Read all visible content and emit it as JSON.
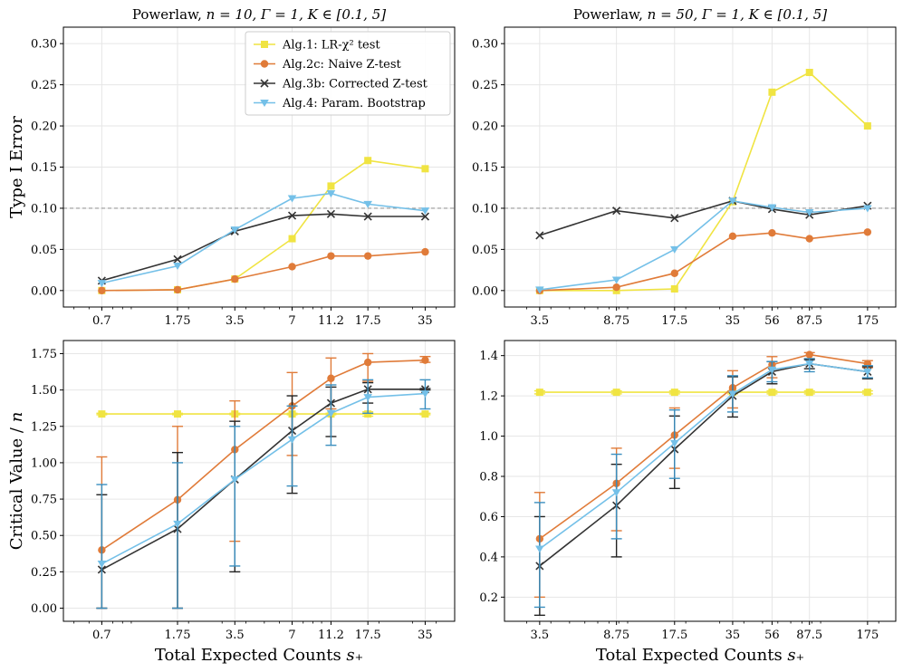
{
  "colors": {
    "alg1": "#f0e442",
    "alg2c": "#e07b39",
    "alg3b": "#333333",
    "alg4": "#74c0e8",
    "grid": "#e6e6e6",
    "refline": "#999999",
    "errbar_blue": "#3b8fbf"
  },
  "chart_data": [
    {
      "id": "p1",
      "type": "line",
      "title_prefix": "Powerlaw, ",
      "title_math": "n = 10, Γ = 1, K ∈ [0.1, 5]",
      "xlabel": "",
      "ylabel": "Type I Error",
      "xscale": "log",
      "xlim": [
        0.44,
        50
      ],
      "ylim": [
        -0.02,
        0.32
      ],
      "x": [
        0.7,
        1.75,
        3.5,
        7,
        11.2,
        17.5,
        35
      ],
      "xticklabels": [
        "0.7",
        "1.75",
        "3.5",
        "7",
        "11.2",
        "17.5",
        "35"
      ],
      "yticks": [
        0.0,
        0.05,
        0.1,
        0.15,
        0.2,
        0.25,
        0.3
      ],
      "yticklabels": [
        "0.00",
        "0.05",
        "0.10",
        "0.15",
        "0.20",
        "0.25",
        "0.30"
      ],
      "refline": 0.1,
      "series": [
        {
          "key": "alg1",
          "values": [
            0.0,
            0.001,
            0.014,
            0.063,
            0.127,
            0.158,
            0.148
          ]
        },
        {
          "key": "alg2c",
          "values": [
            0.0,
            0.001,
            0.014,
            0.029,
            0.042,
            0.042,
            0.047
          ]
        },
        {
          "key": "alg3b",
          "values": [
            0.012,
            0.038,
            0.072,
            0.091,
            0.093,
            0.09,
            0.09
          ]
        },
        {
          "key": "alg4",
          "values": [
            0.009,
            0.03,
            0.074,
            0.112,
            0.118,
            0.105,
            0.097
          ]
        }
      ]
    },
    {
      "id": "p2",
      "type": "line",
      "title_prefix": "Powerlaw, ",
      "title_math": "n = 50, Γ = 1, K ∈ [0.1, 5]",
      "xlabel": "",
      "ylabel": "",
      "xscale": "log",
      "xlim": [
        2.3,
        245
      ],
      "ylim": [
        -0.02,
        0.32
      ],
      "x": [
        3.5,
        8.75,
        17.5,
        35,
        56,
        87.5,
        175
      ],
      "xticklabels": [
        "3.5",
        "8.75",
        "17.5",
        "35",
        "56",
        "87.5",
        "175"
      ],
      "yticks": [
        0.0,
        0.05,
        0.1,
        0.15,
        0.2,
        0.25,
        0.3
      ],
      "yticklabels": [
        "0.00",
        "0.05",
        "0.10",
        "0.15",
        "0.20",
        "0.25",
        "0.30"
      ],
      "refline": 0.1,
      "series": [
        {
          "key": "alg1",
          "values": [
            0.0,
            0.0,
            0.002,
            0.108,
            0.241,
            0.265,
            0.2
          ]
        },
        {
          "key": "alg2c",
          "values": [
            0.0,
            0.004,
            0.021,
            0.066,
            0.07,
            0.063,
            0.071
          ]
        },
        {
          "key": "alg3b",
          "values": [
            0.067,
            0.097,
            0.088,
            0.109,
            0.099,
            0.092,
            0.103
          ]
        },
        {
          "key": "alg4",
          "values": [
            0.001,
            0.013,
            0.05,
            0.109,
            0.101,
            0.095,
            0.1
          ]
        }
      ]
    },
    {
      "id": "p3",
      "type": "line",
      "title_prefix": "",
      "title_math": "",
      "xlabel_prefix": "Total Expected Counts ",
      "xlabel_math": "s₊",
      "ylabel_prefix": "Critical Value / ",
      "ylabel_math": "n",
      "xscale": "log",
      "xlim": [
        0.44,
        50
      ],
      "ylim": [
        -0.09,
        1.84
      ],
      "x": [
        0.7,
        1.75,
        3.5,
        7,
        11.2,
        17.5,
        35
      ],
      "xticklabels": [
        "0.7",
        "1.75",
        "3.5",
        "7",
        "11.2",
        "17.5",
        "35"
      ],
      "yticks": [
        0.0,
        0.25,
        0.5,
        0.75,
        1.0,
        1.25,
        1.5,
        1.75
      ],
      "yticklabels": [
        "0.00",
        "0.25",
        "0.50",
        "0.75",
        "1.00",
        "1.25",
        "1.50",
        "1.75"
      ],
      "series": [
        {
          "key": "alg1",
          "values": [
            1.335,
            1.335,
            1.335,
            1.335,
            1.335,
            1.335,
            1.335
          ],
          "lo": [
            1.33,
            1.33,
            1.33,
            1.33,
            1.33,
            1.32,
            1.33
          ],
          "hi": [
            1.34,
            1.34,
            1.34,
            1.34,
            1.34,
            1.35,
            1.34
          ]
        },
        {
          "key": "alg2c",
          "values": [
            0.4,
            0.745,
            1.09,
            1.39,
            1.58,
            1.69,
            1.705
          ],
          "lo": [
            0.0,
            0.0,
            0.46,
            1.05,
            1.37,
            1.56,
            1.69
          ],
          "hi": [
            1.04,
            1.25,
            1.425,
            1.62,
            1.72,
            1.75,
            1.73
          ]
        },
        {
          "key": "alg3b",
          "values": [
            0.265,
            0.545,
            0.885,
            1.22,
            1.41,
            1.505,
            1.505
          ],
          "lo": [
            0.0,
            0.0,
            0.25,
            0.79,
            1.18,
            1.41,
            1.5
          ],
          "hi": [
            0.78,
            1.07,
            1.285,
            1.46,
            1.52,
            1.55,
            1.51
          ]
        },
        {
          "key": "alg4",
          "values": [
            0.305,
            0.58,
            0.885,
            1.16,
            1.34,
            1.45,
            1.475
          ],
          "lo": [
            0.0,
            0.0,
            0.29,
            0.84,
            1.12,
            1.34,
            1.37
          ],
          "hi": [
            0.85,
            1.0,
            1.25,
            1.39,
            1.535,
            1.57,
            1.57
          ]
        }
      ]
    },
    {
      "id": "p4",
      "type": "line",
      "title_prefix": "",
      "title_math": "",
      "xlabel_prefix": "Total Expected Counts ",
      "xlabel_math": "s₊",
      "ylabel_prefix": "",
      "ylabel_math": "",
      "xscale": "log",
      "xlim": [
        2.3,
        245
      ],
      "ylim": [
        0.08,
        1.475
      ],
      "x": [
        3.5,
        8.75,
        17.5,
        35,
        56,
        87.5,
        175
      ],
      "xticklabels": [
        "3.5",
        "8.75",
        "17.5",
        "35",
        "56",
        "87.5",
        "175"
      ],
      "yticks": [
        0.2,
        0.4,
        0.6,
        0.8,
        1.0,
        1.2,
        1.4
      ],
      "yticklabels": [
        "0.2",
        "0.4",
        "0.6",
        "0.8",
        "1.0",
        "1.2",
        "1.4"
      ],
      "series": [
        {
          "key": "alg1",
          "values": [
            1.218,
            1.218,
            1.218,
            1.218,
            1.218,
            1.218,
            1.218
          ],
          "lo": [
            1.21,
            1.21,
            1.21,
            1.21,
            1.21,
            1.21,
            1.21
          ],
          "hi": [
            1.225,
            1.225,
            1.225,
            1.225,
            1.225,
            1.225,
            1.225
          ]
        },
        {
          "key": "alg2c",
          "values": [
            0.49,
            0.765,
            1.005,
            1.24,
            1.355,
            1.405,
            1.36
          ],
          "lo": [
            0.2,
            0.53,
            0.84,
            1.14,
            1.29,
            1.385,
            1.34
          ],
          "hi": [
            0.72,
            0.94,
            1.14,
            1.325,
            1.395,
            1.415,
            1.375
          ]
        },
        {
          "key": "alg3b",
          "values": [
            0.355,
            0.655,
            0.935,
            1.2,
            1.32,
            1.36,
            1.32
          ],
          "lo": [
            0.11,
            0.4,
            0.74,
            1.095,
            1.26,
            1.335,
            1.285
          ],
          "hi": [
            0.6,
            0.86,
            1.1,
            1.295,
            1.37,
            1.38,
            1.345
          ]
        },
        {
          "key": "alg4",
          "values": [
            0.44,
            0.72,
            0.965,
            1.21,
            1.33,
            1.36,
            1.32
          ],
          "lo": [
            0.15,
            0.49,
            0.79,
            1.12,
            1.27,
            1.32,
            1.29
          ],
          "hi": [
            0.67,
            0.91,
            1.13,
            1.3,
            1.37,
            1.385,
            1.35
          ]
        }
      ]
    }
  ],
  "legend": {
    "location": "top-right of first panel",
    "entries": [
      {
        "key": "alg1",
        "label": "Alg.1: LR-χ² test",
        "marker": "square"
      },
      {
        "key": "alg2c",
        "label": "Alg.2c: Naive Z-test",
        "marker": "circle"
      },
      {
        "key": "alg3b",
        "label": "Alg.3b: Corrected Z-test",
        "marker": "x"
      },
      {
        "key": "alg4",
        "label": "Alg.4: Param. Bootstrap",
        "marker": "triangle-down"
      }
    ]
  }
}
